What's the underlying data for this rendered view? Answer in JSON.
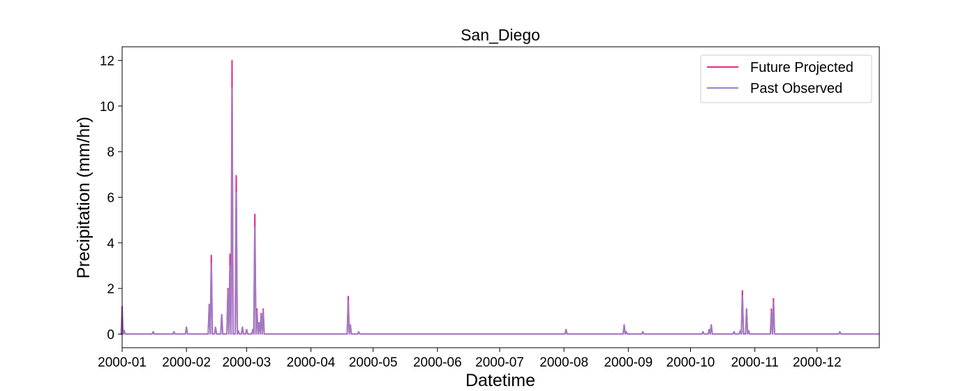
{
  "chart_data": {
    "type": "line",
    "title": "San_Diego",
    "xlabel": "Datetime",
    "ylabel": "Precipitation (mm/hr)",
    "xlim": [
      "2000-01-01",
      "2000-12-31"
    ],
    "ylim": [
      -0.6,
      12.6
    ],
    "x_ticks": [
      "2000-01",
      "2000-02",
      "2000-03",
      "2000-04",
      "2000-05",
      "2000-06",
      "2000-07",
      "2000-08",
      "2000-09",
      "2000-10",
      "2000-11",
      "2000-12"
    ],
    "y_ticks": [
      "0",
      "2",
      "4",
      "6",
      "8",
      "10",
      "12"
    ],
    "grid": false,
    "legend_position": "top-right",
    "series": [
      {
        "name": "Future Projected",
        "color": "#e7298a",
        "peaks": [
          [
            "2000-01-01",
            1.2
          ],
          [
            "2000-01-02",
            0.15
          ],
          [
            "2000-01-16",
            0.1
          ],
          [
            "2000-01-26",
            0.1
          ],
          [
            "2000-02-01",
            0.3
          ],
          [
            "2000-02-12",
            1.3
          ],
          [
            "2000-02-13",
            3.45
          ],
          [
            "2000-02-15",
            0.3
          ],
          [
            "2000-02-18",
            0.85
          ],
          [
            "2000-02-21",
            2.0
          ],
          [
            "2000-02-22",
            3.5
          ],
          [
            "2000-02-23",
            12.0
          ],
          [
            "2000-02-25",
            6.95
          ],
          [
            "2000-02-26",
            0.15
          ],
          [
            "2000-02-28",
            0.3
          ],
          [
            "2000-03-01",
            0.2
          ],
          [
            "2000-03-04",
            0.2
          ],
          [
            "2000-03-05",
            5.25
          ],
          [
            "2000-03-06",
            1.1
          ],
          [
            "2000-03-07",
            0.5
          ],
          [
            "2000-03-08",
            0.9
          ],
          [
            "2000-03-09",
            1.1
          ],
          [
            "2000-04-19",
            1.65
          ],
          [
            "2000-04-20",
            0.4
          ],
          [
            "2000-04-24",
            0.1
          ],
          [
            "2000-08-02",
            0.2
          ],
          [
            "2000-08-30",
            0.4
          ],
          [
            "2000-08-31",
            0.1
          ],
          [
            "2000-09-08",
            0.1
          ],
          [
            "2000-10-07",
            0.1
          ],
          [
            "2000-10-10",
            0.2
          ],
          [
            "2000-10-11",
            0.4
          ],
          [
            "2000-10-22",
            0.1
          ],
          [
            "2000-10-25",
            0.15
          ],
          [
            "2000-10-26",
            1.9
          ],
          [
            "2000-10-28",
            1.1
          ],
          [
            "2000-10-29",
            0.15
          ],
          [
            "2000-11-09",
            1.1
          ],
          [
            "2000-11-10",
            1.55
          ],
          [
            "2000-12-12",
            0.1
          ]
        ]
      },
      {
        "name": "Past Observed",
        "color": "#9982c9",
        "peaks": [
          [
            "2000-01-01",
            1.1
          ],
          [
            "2000-01-02",
            0.15
          ],
          [
            "2000-01-16",
            0.1
          ],
          [
            "2000-01-26",
            0.1
          ],
          [
            "2000-02-01",
            0.3
          ],
          [
            "2000-02-12",
            1.3
          ],
          [
            "2000-02-13",
            3.1
          ],
          [
            "2000-02-15",
            0.3
          ],
          [
            "2000-02-18",
            0.85
          ],
          [
            "2000-02-21",
            1.9
          ],
          [
            "2000-02-22",
            3.0
          ],
          [
            "2000-02-23",
            10.8
          ],
          [
            "2000-02-25",
            6.2
          ],
          [
            "2000-02-26",
            0.15
          ],
          [
            "2000-02-28",
            0.3
          ],
          [
            "2000-03-01",
            0.2
          ],
          [
            "2000-03-04",
            0.2
          ],
          [
            "2000-03-05",
            4.7
          ],
          [
            "2000-03-06",
            1.0
          ],
          [
            "2000-03-07",
            0.5
          ],
          [
            "2000-03-08",
            0.85
          ],
          [
            "2000-03-09",
            1.05
          ],
          [
            "2000-04-19",
            1.45
          ],
          [
            "2000-04-20",
            0.4
          ],
          [
            "2000-04-24",
            0.1
          ],
          [
            "2000-08-02",
            0.2
          ],
          [
            "2000-08-30",
            0.4
          ],
          [
            "2000-08-31",
            0.1
          ],
          [
            "2000-09-08",
            0.1
          ],
          [
            "2000-10-07",
            0.1
          ],
          [
            "2000-10-10",
            0.2
          ],
          [
            "2000-10-11",
            0.4
          ],
          [
            "2000-10-22",
            0.1
          ],
          [
            "2000-10-25",
            0.15
          ],
          [
            "2000-10-26",
            1.7
          ],
          [
            "2000-10-28",
            1.05
          ],
          [
            "2000-10-29",
            0.15
          ],
          [
            "2000-11-09",
            1.0
          ],
          [
            "2000-11-10",
            1.4
          ],
          [
            "2000-12-12",
            0.1
          ]
        ]
      }
    ]
  }
}
